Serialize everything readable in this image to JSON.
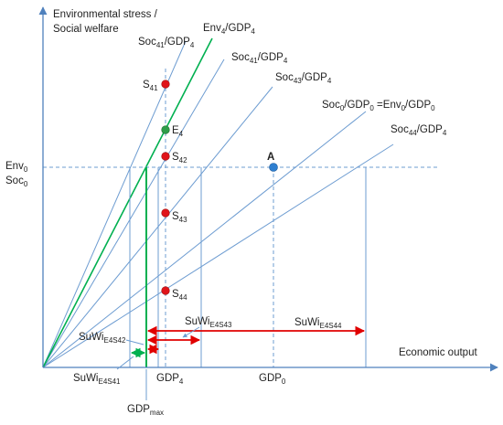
{
  "colors": {
    "axis": "#4f81bd",
    "ray": "#6d9cd1",
    "green_line": "#00b050",
    "green_point": "#2e9e49",
    "red_point": "#e0141a",
    "blue_point": "#2f7fd0",
    "arrow_red": "#e00000",
    "arrow_green": "#00b050",
    "text": "#222222"
  },
  "labels": {
    "y_axis_line1": "Environmental stress /",
    "y_axis_line2": "Social welfare",
    "x_axis": "Economic output",
    "env0": {
      "main": "Env",
      "sub": "0"
    },
    "soc0": {
      "main": "Soc",
      "sub": "0"
    },
    "gdp4": {
      "main": "GDP",
      "sub": "4"
    },
    "gdp0": {
      "main": "GDP",
      "sub": "0"
    },
    "gdpmax": {
      "main": "GDP",
      "sub": "max"
    },
    "point_a": "A",
    "e4": {
      "main": "E",
      "sub": "4"
    },
    "s41": {
      "main": "S",
      "sub": "41"
    },
    "s42": {
      "main": "S",
      "sub": "42"
    },
    "s43": {
      "main": "S",
      "sub": "43"
    },
    "s44": {
      "main": "S",
      "sub": "44"
    },
    "ray_soc41_top": {
      "a": "Soc",
      "a_sub": "41",
      "b": "/GDP",
      "b_sub": "4"
    },
    "ray_env4": {
      "a": "Env",
      "a_sub": "4",
      "b": "/GDP",
      "b_sub": "4"
    },
    "ray_soc41": {
      "a": "Soc",
      "a_sub": "41",
      "b": "/GDP",
      "b_sub": "4"
    },
    "ray_soc43": {
      "a": "Soc",
      "a_sub": "43",
      "b": "/GDP",
      "b_sub": "4"
    },
    "ray_soc0": {
      "a": "Soc",
      "a_sub": "0",
      "b": "/GDP",
      "b_sub": "0",
      "c": " =Env",
      "c_sub": "0",
      "d": "/GDP",
      "d_sub": "0"
    },
    "ray_soc44": {
      "a": "Soc",
      "a_sub": "44",
      "b": "/GDP",
      "b_sub": "4"
    },
    "suwi_e4s43": {
      "main": "SuWi",
      "sub": "E4S43"
    },
    "suwi_e4s44": {
      "main": "SuWi",
      "sub": "E4S44"
    },
    "suwi_e4s42": {
      "main": "SuWi",
      "sub": "E4S42"
    },
    "suwi_e4s41": {
      "main": "SuWi",
      "sub": "E4S41"
    }
  }
}
